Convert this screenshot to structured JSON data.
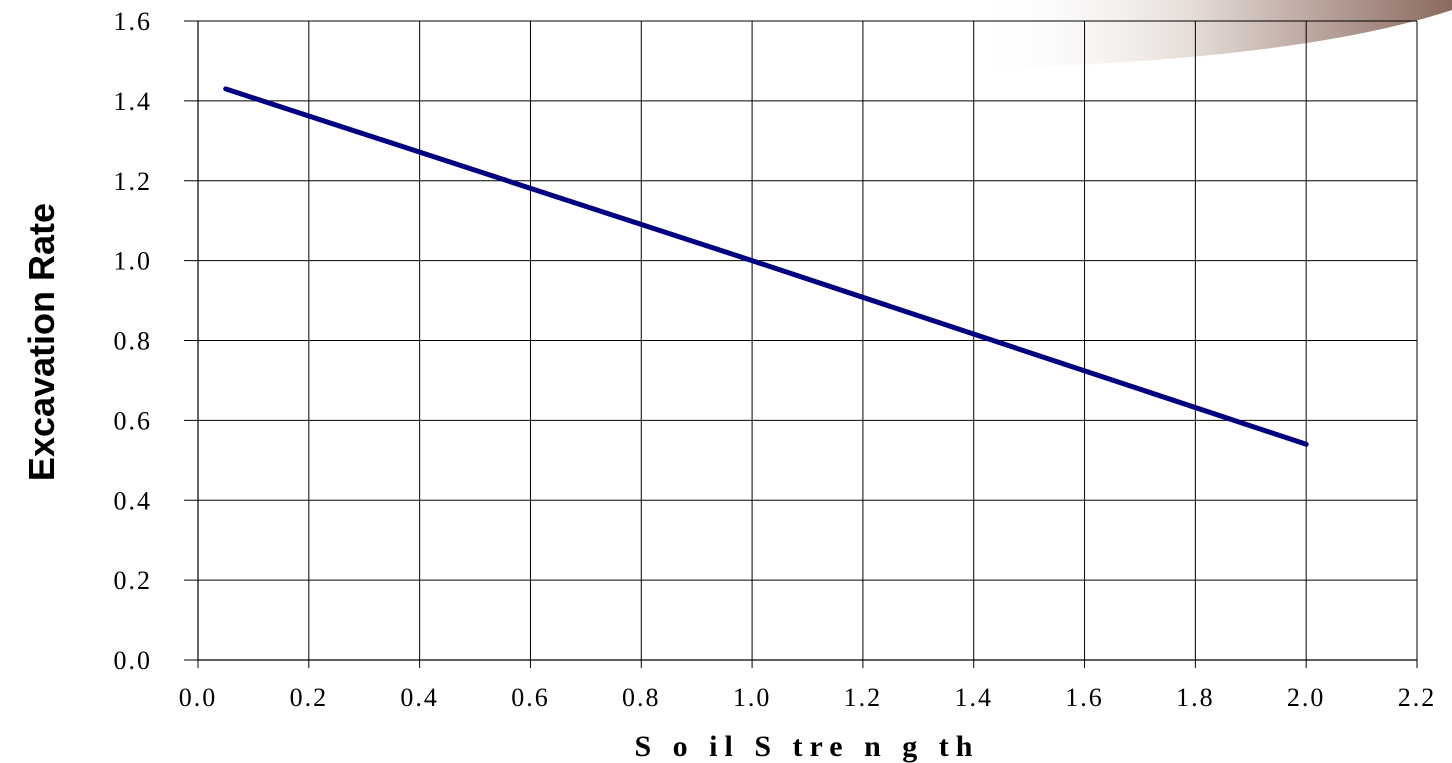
{
  "chart_data": {
    "type": "line",
    "title": "",
    "xlabel": "S o il  S tre n g th",
    "ylabel": "Excavation Rate",
    "xlim": [
      0.0,
      2.2
    ],
    "ylim": [
      0.0,
      1.6
    ],
    "x_ticks": [
      "0.0",
      "0.2",
      "0.4",
      "0.6",
      "0.8",
      "1.0",
      "1.2",
      "1.4",
      "1.6",
      "1.8",
      "2.0",
      "2.2"
    ],
    "y_ticks": [
      "0.0",
      "0.2",
      "0.4",
      "0.6",
      "0.8",
      "1.0",
      "1.2",
      "1.4",
      "1.6"
    ],
    "grid": true,
    "legend": "none",
    "series": [
      {
        "color": "#000080",
        "x": [
          0.05,
          1.0,
          2.0
        ],
        "y": [
          1.43,
          1.0,
          0.54
        ]
      }
    ]
  },
  "colors": {
    "series": "#000080",
    "grid": "#000000",
    "decoration_start": "#ffffff",
    "decoration_end": "#8a6a5e"
  }
}
